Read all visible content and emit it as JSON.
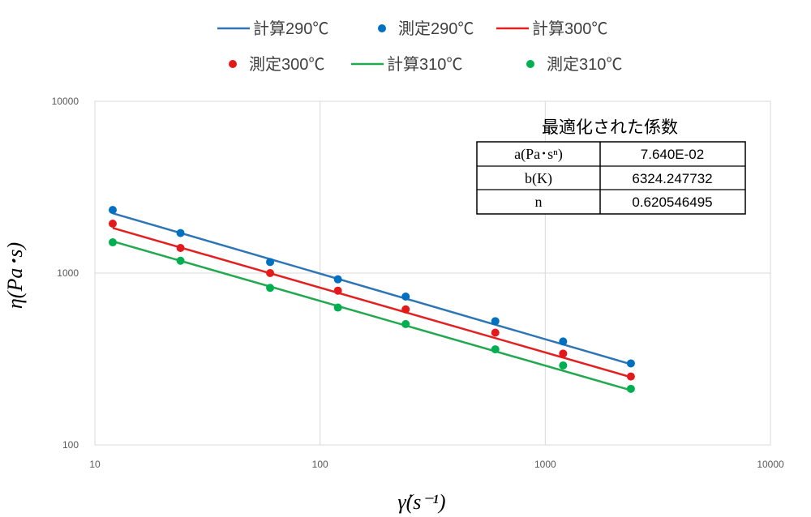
{
  "chart_data": {
    "type": "scatter",
    "x_scale": "log",
    "y_scale": "log",
    "xlim": [
      10,
      10000
    ],
    "ylim": [
      100,
      10000
    ],
    "x_ticks": [
      "10",
      "100",
      "1000",
      "10000"
    ],
    "y_ticks": [
      "100",
      "1000",
      "10000"
    ],
    "grid": true,
    "legend_position": "top",
    "xlabel": "γ̇(s⁻¹)",
    "ylabel": "η(Pa･s)",
    "series": [
      {
        "name": "計算290℃",
        "kind": "line",
        "color": "#2E75B6",
        "x": [
          12,
          2400
        ],
        "y": [
          2230,
          295
        ]
      },
      {
        "name": "測定290℃",
        "kind": "scatter",
        "color": "#0070C0",
        "x": [
          12,
          24,
          60,
          120,
          240,
          600,
          1200,
          2400
        ],
        "y": [
          2330,
          1710,
          1160,
          920,
          730,
          525,
          400,
          298
        ]
      },
      {
        "name": "計算300℃",
        "kind": "line",
        "color": "#E32020",
        "x": [
          12,
          2400
        ],
        "y": [
          1830,
          248
        ]
      },
      {
        "name": "測定300℃",
        "kind": "scatter",
        "color": "#E31A1C",
        "x": [
          12,
          24,
          60,
          120,
          240,
          600,
          1200,
          2400
        ],
        "y": [
          1940,
          1400,
          1000,
          790,
          615,
          450,
          340,
          250
        ]
      },
      {
        "name": "計算310℃",
        "kind": "line",
        "color": "#22A84E",
        "x": [
          12,
          2400
        ],
        "y": [
          1530,
          208
        ]
      },
      {
        "name": "測定310℃",
        "kind": "scatter",
        "color": "#00B050",
        "x": [
          12,
          24,
          60,
          120,
          240,
          600,
          1200,
          2400
        ],
        "y": [
          1510,
          1180,
          820,
          630,
          505,
          360,
          290,
          212
        ]
      }
    ],
    "table": {
      "title": "最適化された係数",
      "rows": [
        {
          "param": "a(Pa･sⁿ)",
          "value": "7.640E-02"
        },
        {
          "param": "b(K)",
          "value": "6324.247732"
        },
        {
          "param": "n",
          "value": "0.620546495"
        }
      ]
    }
  }
}
